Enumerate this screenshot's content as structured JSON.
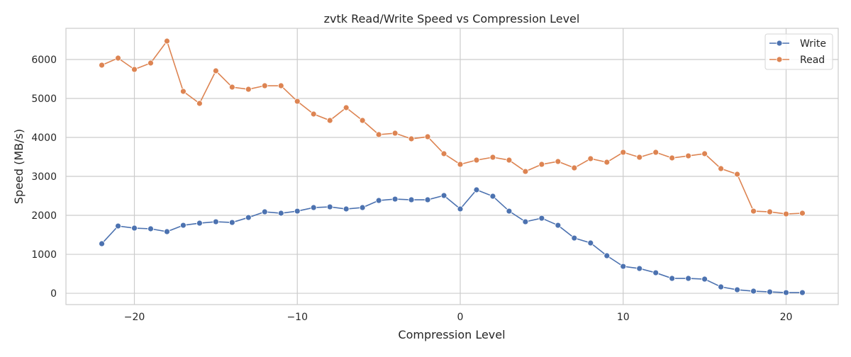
{
  "chart_data": {
    "type": "line",
    "title": "zvtk Read/Write Speed vs Compression Level",
    "xlabel": "Compression Level",
    "ylabel": "Speed (MB/s)",
    "xlim": [
      -24.2,
      23.2
    ],
    "ylim": [
      -290,
      6800
    ],
    "xticks": [
      -20,
      -10,
      0,
      10,
      20
    ],
    "xtick_labels": [
      "−20",
      "−10",
      "0",
      "10",
      "20"
    ],
    "yticks": [
      0,
      1000,
      2000,
      3000,
      4000,
      5000,
      6000
    ],
    "ytick_labels": [
      "0",
      "1000",
      "2000",
      "3000",
      "4000",
      "5000",
      "6000"
    ],
    "grid": true,
    "legend": "top-right",
    "x": [
      -22,
      -21,
      -20,
      -19,
      -18,
      -17,
      -16,
      -15,
      -14,
      -13,
      -12,
      -11,
      -10,
      -9,
      -8,
      -7,
      -6,
      -5,
      -4,
      -3,
      -2,
      -1,
      0,
      1,
      2,
      3,
      4,
      5,
      6,
      7,
      8,
      9,
      10,
      11,
      12,
      13,
      14,
      15,
      16,
      17,
      18,
      19,
      20,
      21
    ],
    "series": [
      {
        "name": "Write",
        "color": "#4c72b0",
        "values": [
          1273,
          1727,
          1673,
          1655,
          1582,
          1745,
          1800,
          1836,
          1818,
          1945,
          2091,
          2055,
          2109,
          2200,
          2218,
          2164,
          2200,
          2382,
          2418,
          2400,
          2400,
          2509,
          2164,
          2655,
          2491,
          2109,
          1836,
          1927,
          1745,
          1418,
          1291,
          964,
          691,
          636,
          527,
          382,
          382,
          364,
          164,
          91,
          55,
          36,
          18,
          18
        ]
      },
      {
        "name": "Read",
        "color": "#dd8452",
        "values": [
          5855,
          6036,
          5745,
          5909,
          6473,
          5182,
          4873,
          5709,
          5291,
          5236,
          5327,
          5327,
          4927,
          4600,
          4436,
          4764,
          4436,
          4073,
          4109,
          3964,
          4018,
          3582,
          3309,
          3418,
          3491,
          3418,
          3127,
          3309,
          3382,
          3218,
          3455,
          3364,
          3618,
          3491,
          3618,
          3473,
          3527,
          3582,
          3200,
          3055,
          2109,
          2091,
          2036,
          2055
        ]
      }
    ]
  }
}
